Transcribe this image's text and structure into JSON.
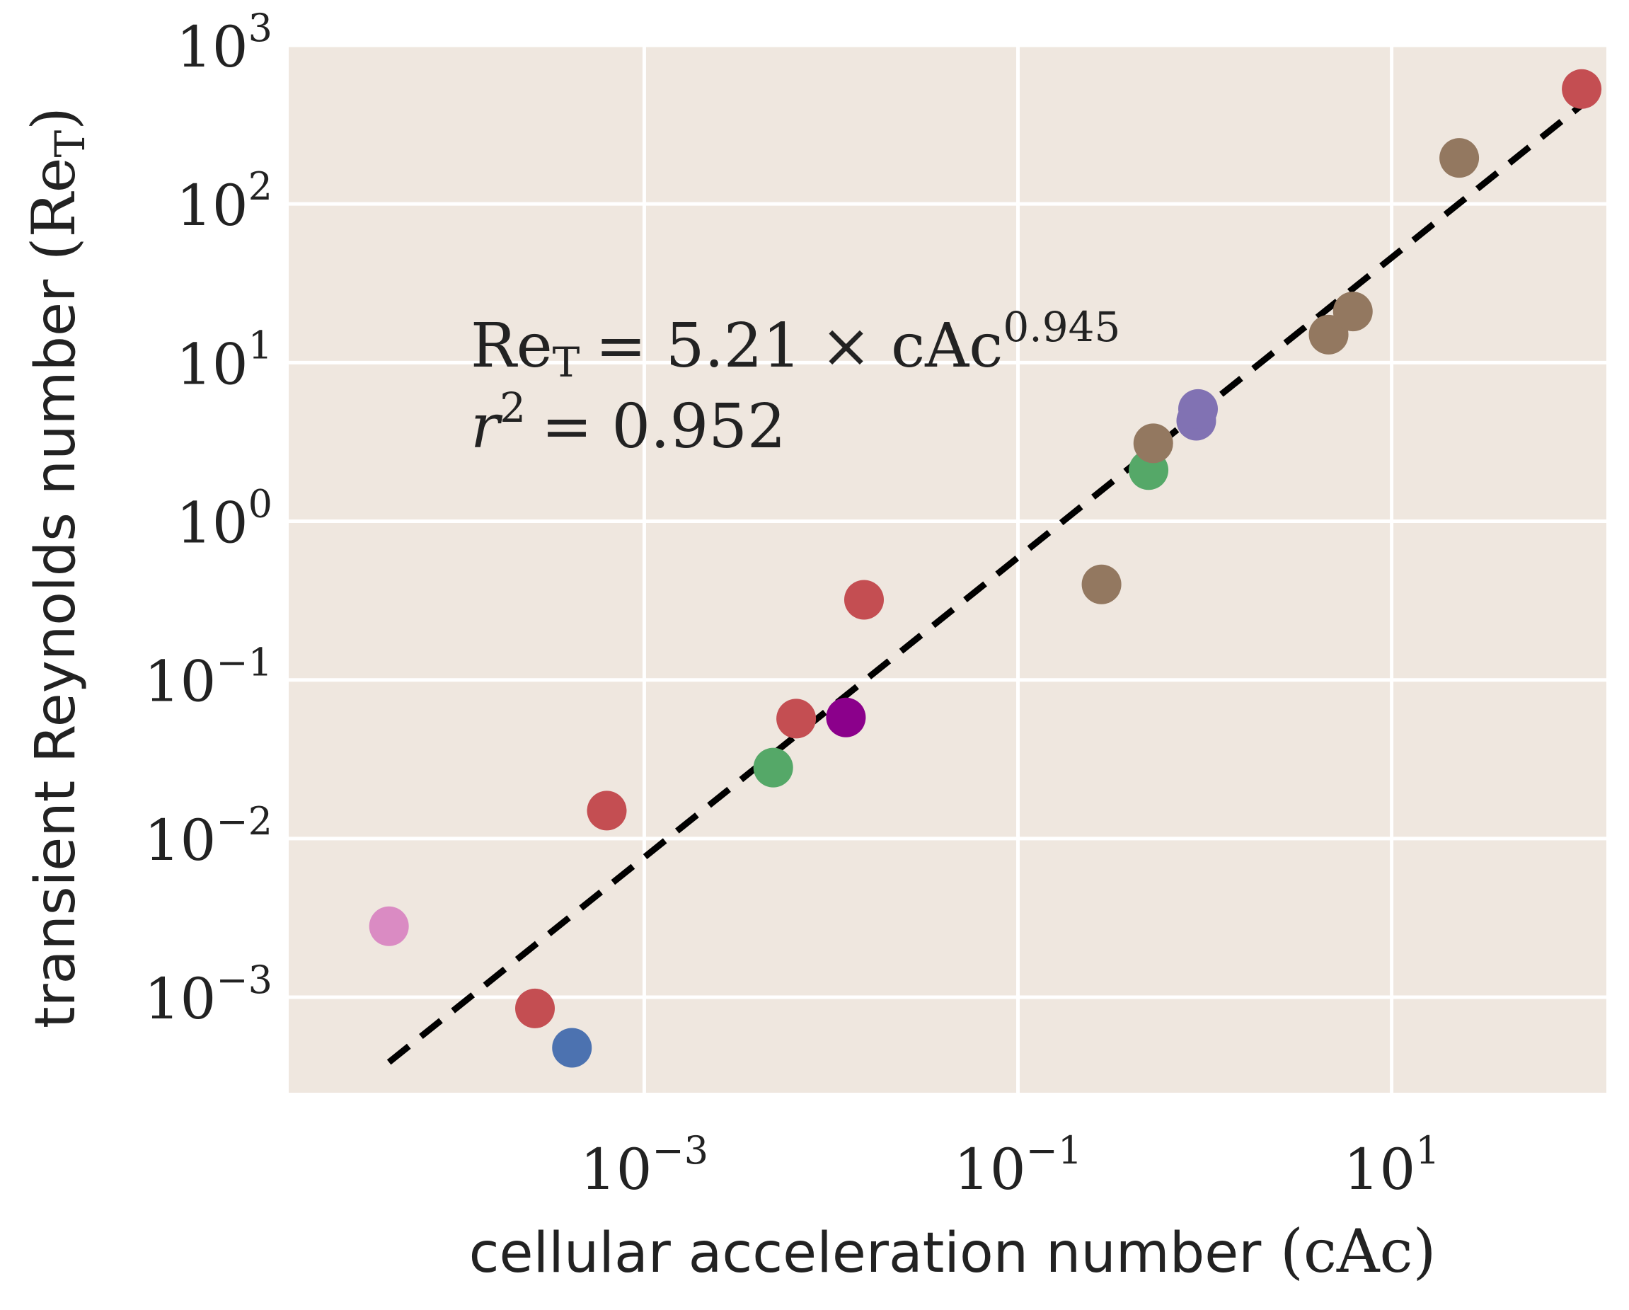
{
  "chart_data": {
    "type": "scatter",
    "xlabel": "cellular acceleration number",
    "xlabel_symbol": "cAc",
    "ylabel": "transient Reynolds number",
    "ylabel_symbol": "Re",
    "ylabel_symbol_sub": "T",
    "xscale": "log",
    "yscale": "log",
    "xlim": [
      1.25e-05,
      141
    ],
    "ylim": [
      0.00025,
      1000
    ],
    "grid": true,
    "background": "#efe7df",
    "x_ticks": [
      {
        "value": 0.001,
        "base": "10",
        "exp": "−3"
      },
      {
        "value": 0.1,
        "base": "10",
        "exp": "−1"
      },
      {
        "value": 10,
        "base": "10",
        "exp": "1"
      }
    ],
    "y_ticks": [
      {
        "value": 0.001,
        "base": "10",
        "exp": "−3"
      },
      {
        "value": 0.01,
        "base": "10",
        "exp": "−2"
      },
      {
        "value": 0.1,
        "base": "10",
        "exp": "−1"
      },
      {
        "value": 1,
        "base": "10",
        "exp": "0"
      },
      {
        "value": 10,
        "base": "10",
        "exp": "1"
      },
      {
        "value": 100,
        "base": "10",
        "exp": "2"
      },
      {
        "value": 1000,
        "base": "10",
        "exp": "3"
      }
    ],
    "points": [
      {
        "x": 4.3e-05,
        "y": 0.0028,
        "color": "#da8bc3"
      },
      {
        "x": 0.00026,
        "y": 0.00085,
        "color": "#c44e52"
      },
      {
        "x": 0.00041,
        "y": 0.00048,
        "color": "#4c72b0"
      },
      {
        "x": 0.00063,
        "y": 0.015,
        "color": "#c44e52"
      },
      {
        "x": 0.0049,
        "y": 0.028,
        "color": "#55a868"
      },
      {
        "x": 0.0065,
        "y": 0.057,
        "color": "#c44e52"
      },
      {
        "x": 0.012,
        "y": 0.058,
        "color": "#8b008b"
      },
      {
        "x": 0.015,
        "y": 0.32,
        "color": "#c44e52"
      },
      {
        "x": 0.28,
        "y": 0.4,
        "color": "#937860"
      },
      {
        "x": 0.5,
        "y": 2.1,
        "color": "#55a868"
      },
      {
        "x": 0.53,
        "y": 3.1,
        "color": "#937860"
      },
      {
        "x": 0.9,
        "y": 4.3,
        "color": "#8172b3"
      },
      {
        "x": 0.92,
        "y": 5.1,
        "color": "#8172b3"
      },
      {
        "x": 4.6,
        "y": 15,
        "color": "#937860"
      },
      {
        "x": 6.2,
        "y": 21,
        "color": "#937860"
      },
      {
        "x": 23,
        "y": 195,
        "color": "#937860"
      },
      {
        "x": 104,
        "y": 530,
        "color": "#c44e52"
      }
    ],
    "fit": {
      "coefficient": 5.21,
      "exponent": 0.945,
      "x_range": [
        4.3e-05,
        104
      ],
      "style": "dashed",
      "color": "#000000",
      "equation_lhs": "Re",
      "equation_lhs_sub": "T",
      "equation_rhs": "= 5.21 × cAc",
      "equation_exp": "0.945",
      "r2_label": "r",
      "r2_exp": "2",
      "r2_text": "= 0.952"
    }
  }
}
